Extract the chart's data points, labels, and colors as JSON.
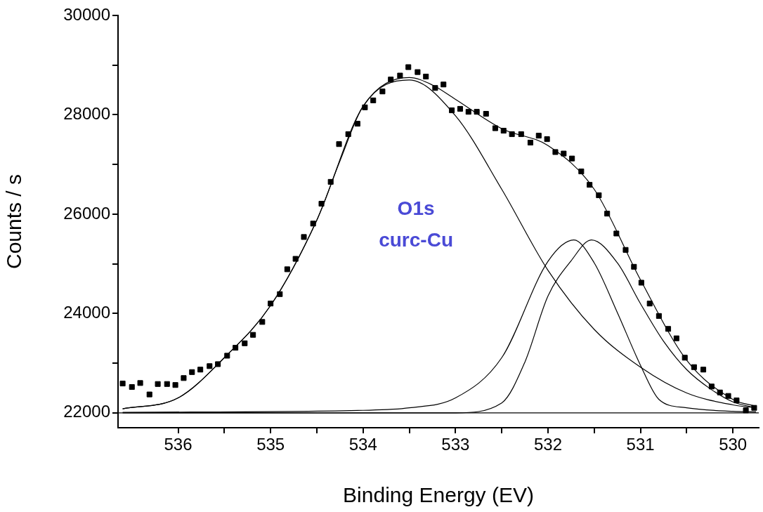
{
  "chart_data": {
    "type": "scatter",
    "xlabel": "Binding Energy (EV)",
    "ylabel": "Counts / s",
    "annotations": [
      "O1s",
      "curc-Cu"
    ],
    "xlim": [
      536.65,
      529.72
    ],
    "ylim": [
      21700,
      30000
    ],
    "xticks": [
      536,
      {
        "value": 535.5,
        "label": null
      },
      535,
      {
        "value": 534.5,
        "label": null
      },
      534,
      {
        "value": 533.5,
        "label": null
      },
      533,
      {
        "value": 532.5,
        "label": null
      },
      532,
      {
        "value": 531.5,
        "label": null
      },
      531,
      {
        "value": 530.5,
        "label": null
      },
      530
    ],
    "yticks": [
      22000,
      {
        "value": 23000,
        "label": null
      },
      24000,
      {
        "value": 25000,
        "label": null
      },
      26000,
      {
        "value": 27000,
        "label": null
      },
      28000,
      {
        "value": 29000,
        "label": null
      },
      30000
    ],
    "grid": false,
    "legend": false,
    "series": [
      {
        "marker": "square",
        "color": "#000000",
        "x": [
          536.6,
          536.5,
          536.41,
          536.31,
          536.22,
          536.12,
          536.03,
          535.94,
          535.85,
          535.76,
          535.66,
          535.57,
          535.47,
          535.38,
          535.28,
          535.19,
          535.09,
          535.0,
          534.9,
          534.82,
          534.73,
          534.64,
          534.54,
          534.45,
          534.35,
          534.26,
          534.16,
          534.06,
          533.98,
          533.89,
          533.79,
          533.7,
          533.6,
          533.51,
          533.41,
          533.32,
          533.22,
          533.13,
          533.04,
          532.95,
          532.86,
          532.77,
          532.67,
          532.57,
          532.48,
          532.39,
          532.29,
          532.19,
          532.1,
          532.01,
          531.92,
          531.83,
          531.74,
          531.64,
          531.55,
          531.45,
          531.36,
          531.26,
          531.16,
          531.07,
          530.99,
          530.9,
          530.8,
          530.7,
          530.61,
          530.52,
          530.42,
          530.32,
          530.23,
          530.14,
          530.05,
          529.96,
          529.86,
          529.77
        ],
        "values": [
          22590,
          22520,
          22600,
          22370,
          22580,
          22580,
          22560,
          22700,
          22820,
          22870,
          22940,
          22980,
          23150,
          23310,
          23400,
          23570,
          23830,
          24200,
          24390,
          24890,
          25100,
          25540,
          25810,
          26210,
          26650,
          27410,
          27610,
          27820,
          28150,
          28290,
          28470,
          28710,
          28790,
          28960,
          28860,
          28770,
          28540,
          28610,
          28090,
          28120,
          28060,
          28060,
          28020,
          27730,
          27680,
          27610,
          27610,
          27440,
          27580,
          27510,
          27250,
          27220,
          27120,
          26860,
          26590,
          26380,
          26010,
          25610,
          25280,
          24940,
          24620,
          24200,
          23950,
          23690,
          23500,
          23110,
          22920,
          22870,
          22530,
          22410,
          22340,
          22250,
          22050,
          22100
        ]
      },
      {
        "type": "line",
        "marker": "none",
        "color": "#000000",
        "x": [
          536.6,
          536.0,
          535.5,
          535.0,
          534.5,
          534.25,
          534.0,
          533.5,
          533.25,
          533.0,
          532.5,
          532.0,
          531.5,
          531.0,
          530.5,
          530.0,
          529.75
        ],
        "values": [
          22080,
          22300,
          23110,
          24160,
          25880,
          27070,
          28170,
          28750,
          28600,
          28310,
          27720,
          27380,
          26500,
          24680,
          23060,
          22270,
          22130
        ]
      },
      {
        "type": "line",
        "marker": "none",
        "color": "#000000",
        "x": [
          536.6,
          536.0,
          535.5,
          535.0,
          534.5,
          534.0,
          533.5,
          533.0,
          532.5,
          532.0,
          531.5,
          531.0,
          530.5,
          530.0,
          529.75
        ],
        "values": [
          22080,
          22300,
          23110,
          24160,
          25880,
          28170,
          28700,
          27980,
          26500,
          24870,
          23680,
          22920,
          22400,
          22160,
          22100
        ]
      },
      {
        "type": "line",
        "marker": "none",
        "color": "#000000",
        "x": [
          536.6,
          534.0,
          533.5,
          533.0,
          532.5,
          532.0,
          531.72,
          531.5,
          531.25,
          531.0,
          530.8,
          530.5,
          530.0,
          529.75
        ],
        "values": [
          22010,
          22050,
          22100,
          22300,
          23110,
          25050,
          25480,
          25020,
          24020,
          22960,
          22270,
          22100,
          22030,
          22020
        ]
      },
      {
        "type": "line",
        "marker": "none",
        "color": "#000000",
        "x": [
          536.6,
          533.0,
          532.5,
          532.25,
          532.0,
          531.75,
          531.53,
          531.25,
          531.0,
          530.75,
          530.5,
          530.25,
          530.0,
          529.75
        ],
        "values": [
          22000,
          22000,
          22200,
          23020,
          24350,
          25060,
          25480,
          25020,
          24200,
          23440,
          22870,
          22490,
          22220,
          22100
        ]
      },
      {
        "type": "line",
        "marker": "none",
        "color": "#000000",
        "x": [
          536.65,
          529.72
        ],
        "values": [
          22000,
          22000
        ]
      }
    ]
  }
}
